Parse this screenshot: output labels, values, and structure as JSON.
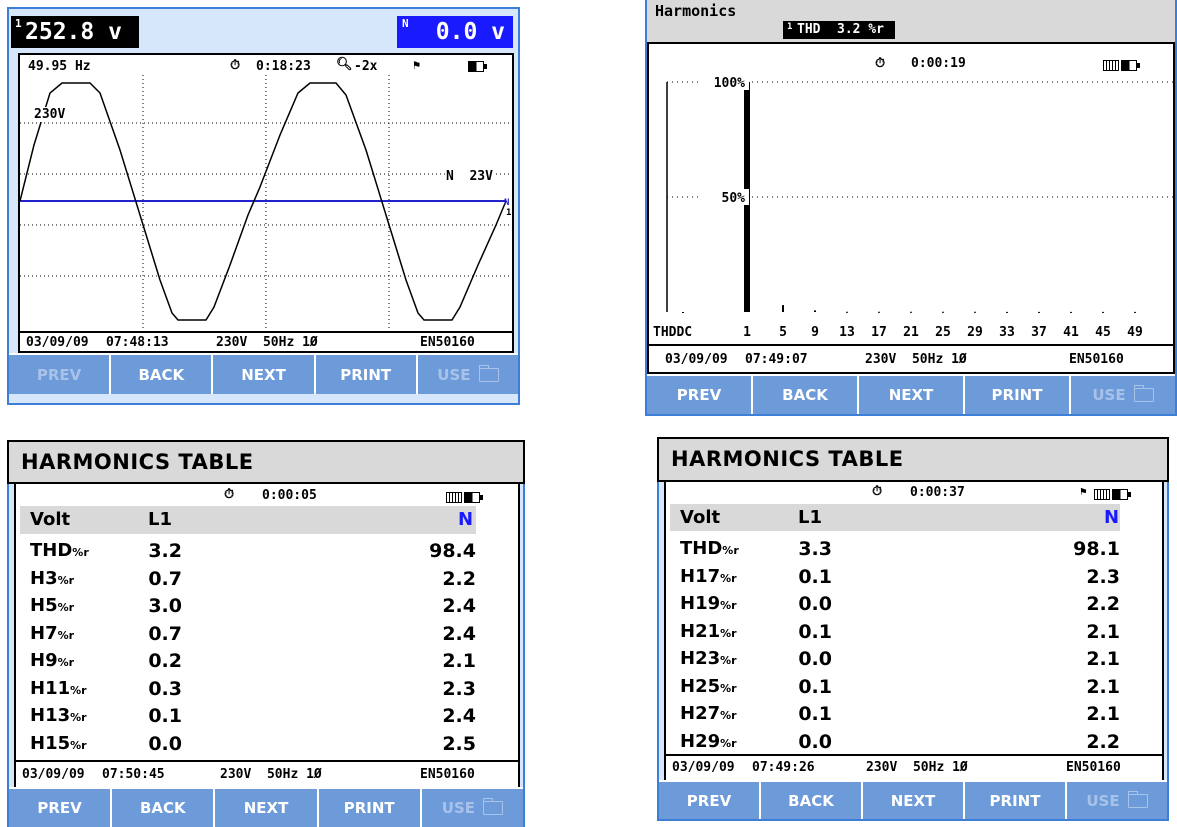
{
  "scope": {
    "l1_reading": "252.8 v",
    "l1_channel": "1",
    "n_reading": "0.0 v",
    "n_channel": "N",
    "freq": "49.95 Hz",
    "timer": "0:18:23",
    "zoom": "-2x",
    "ref_label": "230V",
    "n_ref_label": "N  23V",
    "date": "03/09/09",
    "time": "07:48:13",
    "config": "230V  50Hz 1Ø",
    "standard": "EN50160"
  },
  "harmonics_chart": {
    "title": "Harmonics",
    "channel": "1",
    "thd_label": "THD",
    "thd_value": "3.2 %r",
    "timer": "0:00:19",
    "label_100": "100%",
    "label_50": "50%",
    "date": "03/09/09",
    "time": "07:49:07",
    "config": "230V  50Hz 1Ø",
    "standard": "EN50160"
  },
  "chart_data": {
    "type": "bar",
    "categories": [
      "THDDC",
      "1",
      "5",
      "9",
      "13",
      "17",
      "21",
      "25",
      "29",
      "33",
      "37",
      "41",
      "45",
      "49"
    ],
    "tick_labels": [
      "THDDC",
      "1",
      "5",
      "9",
      "13",
      "17",
      "21",
      "25",
      "29",
      "33",
      "37",
      "41",
      "45",
      "49"
    ],
    "values": [
      0,
      100,
      3,
      0.7,
      0.1,
      0.1,
      0.1,
      0.1,
      0.1,
      0.05,
      0.05,
      0.05,
      0.05,
      0.05
    ],
    "ylim": [
      0,
      100
    ],
    "ytick_labels": [
      "50%",
      "100%"
    ],
    "grid": true
  },
  "table1": {
    "title": "HARMONICS TABLE",
    "timer": "0:00:05",
    "col_volt": "Volt",
    "col_l1": "L1",
    "col_n": "N",
    "unit": "%r",
    "rows": [
      {
        "name": "THD",
        "l1": "3.2",
        "n": "98.4"
      },
      {
        "name": "H3",
        "l1": "0.7",
        "n": "2.2"
      },
      {
        "name": "H5",
        "l1": "3.0",
        "n": "2.4"
      },
      {
        "name": "H7",
        "l1": "0.7",
        "n": "2.4"
      },
      {
        "name": "H9",
        "l1": "0.2",
        "n": "2.1"
      },
      {
        "name": "H11",
        "l1": "0.3",
        "n": "2.3"
      },
      {
        "name": "H13",
        "l1": "0.1",
        "n": "2.4"
      },
      {
        "name": "H15",
        "l1": "0.0",
        "n": "2.5"
      }
    ],
    "date": "03/09/09",
    "time": "07:50:45",
    "config": "230V  50Hz 1Ø",
    "standard": "EN50160"
  },
  "table2": {
    "title": "HARMONICS TABLE",
    "timer": "0:00:37",
    "col_volt": "Volt",
    "col_l1": "L1",
    "col_n": "N",
    "unit": "%r",
    "rows": [
      {
        "name": "THD",
        "l1": "3.3",
        "n": "98.1"
      },
      {
        "name": "H17",
        "l1": "0.1",
        "n": "2.3"
      },
      {
        "name": "H19",
        "l1": "0.0",
        "n": "2.2"
      },
      {
        "name": "H21",
        "l1": "0.1",
        "n": "2.1"
      },
      {
        "name": "H23",
        "l1": "0.0",
        "n": "2.1"
      },
      {
        "name": "H25",
        "l1": "0.1",
        "n": "2.1"
      },
      {
        "name": "H27",
        "l1": "0.1",
        "n": "2.1"
      },
      {
        "name": "H29",
        "l1": "0.0",
        "n": "2.2"
      }
    ],
    "date": "03/09/09",
    "time": "07:49:26",
    "config": "230V  50Hz 1Ø",
    "standard": "EN50160"
  },
  "softkeys": {
    "prev": "PREV",
    "back": "BACK",
    "next": "NEXT",
    "print": "PRINT",
    "use": "USE"
  },
  "colors": {
    "softkey_bg": "#6d9ad8",
    "frame_blue": "#3d7fd6",
    "n_trace": "#2222cc",
    "n_badge": "#1a1aff"
  }
}
